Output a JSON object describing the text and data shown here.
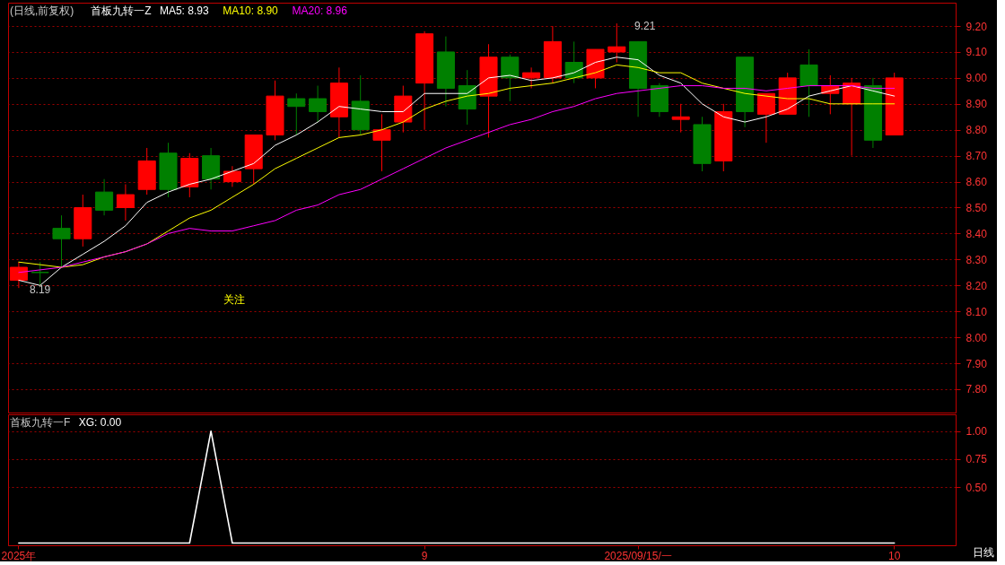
{
  "chart_data": [
    {
      "type": "candlestick",
      "title": "(日线,前复权)",
      "subtitle": "首板九转一Z",
      "ohlc": [
        [
          8.22,
          8.29,
          8.19,
          8.27
        ],
        [
          8.25,
          8.29,
          8.2,
          8.25
        ],
        [
          8.42,
          8.47,
          8.27,
          8.38
        ],
        [
          8.38,
          8.55,
          8.35,
          8.5
        ],
        [
          8.56,
          8.61,
          8.47,
          8.49
        ],
        [
          8.5,
          8.59,
          8.45,
          8.55
        ],
        [
          8.57,
          8.73,
          8.55,
          8.68
        ],
        [
          8.71,
          8.75,
          8.54,
          8.57
        ],
        [
          8.58,
          8.71,
          8.54,
          8.69
        ],
        [
          8.7,
          8.73,
          8.57,
          8.61
        ],
        [
          8.6,
          8.66,
          8.58,
          8.64
        ],
        [
          8.65,
          8.78,
          8.59,
          8.78
        ],
        [
          8.78,
          8.99,
          8.76,
          8.93
        ],
        [
          8.92,
          8.94,
          8.78,
          8.89
        ],
        [
          8.92,
          8.97,
          8.83,
          8.87
        ],
        [
          8.85,
          9.04,
          8.77,
          8.98
        ],
        [
          8.91,
          9.01,
          8.78,
          8.8
        ],
        [
          8.76,
          8.86,
          8.64,
          8.8
        ],
        [
          8.83,
          8.97,
          8.79,
          8.93
        ],
        [
          8.98,
          9.18,
          8.8,
          9.17
        ],
        [
          9.1,
          9.16,
          8.89,
          8.96
        ],
        [
          8.97,
          9.03,
          8.82,
          8.88
        ],
        [
          8.93,
          9.13,
          8.77,
          9.08
        ],
        [
          9.08,
          9.09,
          8.91,
          9.0
        ],
        [
          9.0,
          9.04,
          8.96,
          9.02
        ],
        [
          9.0,
          9.2,
          8.98,
          9.14
        ],
        [
          9.06,
          9.14,
          8.98,
          9.0
        ],
        [
          9.0,
          9.11,
          8.96,
          9.11
        ],
        [
          9.1,
          9.21,
          9.06,
          9.12
        ],
        [
          9.14,
          9.14,
          8.85,
          8.96
        ],
        [
          8.97,
          8.98,
          8.85,
          8.87
        ],
        [
          8.84,
          8.9,
          8.79,
          8.85
        ],
        [
          8.82,
          8.85,
          8.64,
          8.67
        ],
        [
          8.68,
          8.9,
          8.64,
          8.87
        ],
        [
          9.08,
          9.08,
          8.81,
          8.87
        ],
        [
          8.86,
          8.94,
          8.75,
          8.94
        ],
        [
          8.86,
          9.02,
          8.86,
          9.0
        ],
        [
          9.05,
          9.11,
          8.85,
          8.97
        ],
        [
          8.94,
          9.01,
          8.86,
          8.97
        ],
        [
          8.9,
          9.0,
          8.7,
          8.98
        ],
        [
          8.97,
          9.0,
          8.73,
          8.76
        ],
        [
          8.78,
          9.02,
          8.78,
          9.0
        ]
      ],
      "colors": [
        "#ff0000",
        "#008000",
        "#008000",
        "#ff0000",
        "#008000",
        "#ff0000",
        "#ff0000",
        "#008000",
        "#ff0000",
        "#008000",
        "#ff0000",
        "#ff0000",
        "#ff0000",
        "#008000",
        "#008000",
        "#ff0000",
        "#008000",
        "#ff0000",
        "#ff0000",
        "#ff0000",
        "#008000",
        "#008000",
        "#ff0000",
        "#008000",
        "#ff0000",
        "#ff0000",
        "#008000",
        "#ff0000",
        "#ff0000",
        "#008000",
        "#008000",
        "#ff0000",
        "#008000",
        "#ff0000",
        "#008000",
        "#ff0000",
        "#ff0000",
        "#008000",
        "#ff0000",
        "#ff0000",
        "#008000",
        "#ff0000"
      ],
      "series": [
        {
          "name": "MA5: 8.93",
          "type": "line",
          "color": "#ffffff",
          "values": [
            8.22,
            8.2,
            8.27,
            8.32,
            8.37,
            8.43,
            8.52,
            8.56,
            8.59,
            8.61,
            8.64,
            8.67,
            8.74,
            8.78,
            8.83,
            8.89,
            8.88,
            8.87,
            8.87,
            8.94,
            8.94,
            8.94,
            9.0,
            9.01,
            8.99,
            9.0,
            9.02,
            9.06,
            9.08,
            9.07,
            9.01,
            8.98,
            8.9,
            8.85,
            8.83,
            8.85,
            8.88,
            8.93,
            8.95,
            8.97,
            8.95,
            8.93
          ]
        },
        {
          "name": "MA10: 8.90",
          "type": "line",
          "color": "#ffff00",
          "values": [
            8.29,
            8.28,
            8.27,
            8.28,
            8.31,
            8.33,
            8.36,
            8.41,
            8.46,
            8.49,
            8.54,
            8.59,
            8.65,
            8.69,
            8.73,
            8.77,
            8.78,
            8.8,
            8.83,
            8.88,
            8.91,
            8.93,
            8.94,
            8.96,
            8.97,
            8.98,
            9.0,
            9.02,
            9.05,
            9.04,
            9.02,
            9.02,
            8.98,
            8.96,
            8.94,
            8.93,
            8.92,
            8.92,
            8.9,
            8.9,
            8.9,
            8.9
          ]
        },
        {
          "name": "MA20: 8.96",
          "type": "line",
          "color": "#ff00ff",
          "values": [
            8.25,
            8.26,
            8.27,
            8.29,
            8.31,
            8.33,
            8.36,
            8.4,
            8.42,
            8.41,
            8.41,
            8.43,
            8.45,
            8.49,
            8.51,
            8.55,
            8.57,
            8.61,
            8.65,
            8.69,
            8.73,
            8.76,
            8.79,
            8.82,
            8.84,
            8.87,
            8.89,
            8.92,
            8.94,
            8.95,
            8.96,
            8.97,
            8.97,
            8.96,
            8.96,
            8.95,
            8.96,
            8.97,
            8.97,
            8.97,
            8.96,
            8.96
          ]
        }
      ],
      "ylim": [
        7.71,
        9.29
      ],
      "yticks": [
        {
          "value": 7.8,
          "label": "7.80"
        },
        {
          "value": 7.9,
          "label": "7.90"
        },
        {
          "value": 8.0,
          "label": "8.00"
        },
        {
          "value": 8.1,
          "label": "8.10"
        },
        {
          "value": 8.2,
          "label": "8.20"
        },
        {
          "value": 8.3,
          "label": "8.30"
        },
        {
          "value": 8.4,
          "label": "8.40"
        },
        {
          "value": 8.5,
          "label": "8.50"
        },
        {
          "value": 8.6,
          "label": "8.60"
        },
        {
          "value": 8.7,
          "label": "8.70"
        },
        {
          "value": 8.8,
          "label": "8.80"
        },
        {
          "value": 8.9,
          "label": "8.90"
        },
        {
          "value": 9.0,
          "label": "9.00"
        },
        {
          "value": 9.1,
          "label": "9.10"
        },
        {
          "value": 9.2,
          "label": "9.20"
        }
      ],
      "grid": "y",
      "tick_labels": "y",
      "annotations": [
        {
          "text": "8.19",
          "y": 8.19
        },
        "9.21",
        "关注"
      ]
    },
    {
      "type": "line",
      "title": "首板九转一F",
      "categories": [
        "2025年",
        null,
        null,
        null,
        null,
        null,
        null,
        null,
        null,
        null,
        null,
        null,
        null,
        null,
        null,
        null,
        null,
        null,
        null,
        "9",
        null,
        null,
        null,
        null,
        null,
        null,
        null,
        null,
        null,
        "2025/09/15/一",
        null,
        null,
        null,
        null,
        null,
        null,
        null,
        null,
        null,
        null,
        null,
        "10"
      ],
      "series": [
        {
          "name": "XG: 0.00",
          "color": "#ffffff",
          "values": [
            0,
            0,
            0,
            0,
            0,
            0,
            0,
            0,
            0,
            1,
            0,
            0,
            0,
            0,
            0,
            0,
            0,
            0,
            0,
            0,
            0,
            0,
            0,
            0,
            0,
            0,
            0,
            0,
            0,
            0,
            0,
            0,
            0,
            0,
            0,
            0,
            0,
            0,
            0,
            0,
            0,
            0
          ]
        }
      ],
      "ylim": [
        -0.02,
        1.15
      ],
      "yticks": [
        {
          "value": 0.5,
          "label": "0.50"
        },
        {
          "value": 0.75,
          "label": "0.75"
        },
        {
          "value": 1.0,
          "label": "1.00"
        }
      ],
      "grid": "y",
      "annotations": [
        "日线"
      ]
    }
  ]
}
